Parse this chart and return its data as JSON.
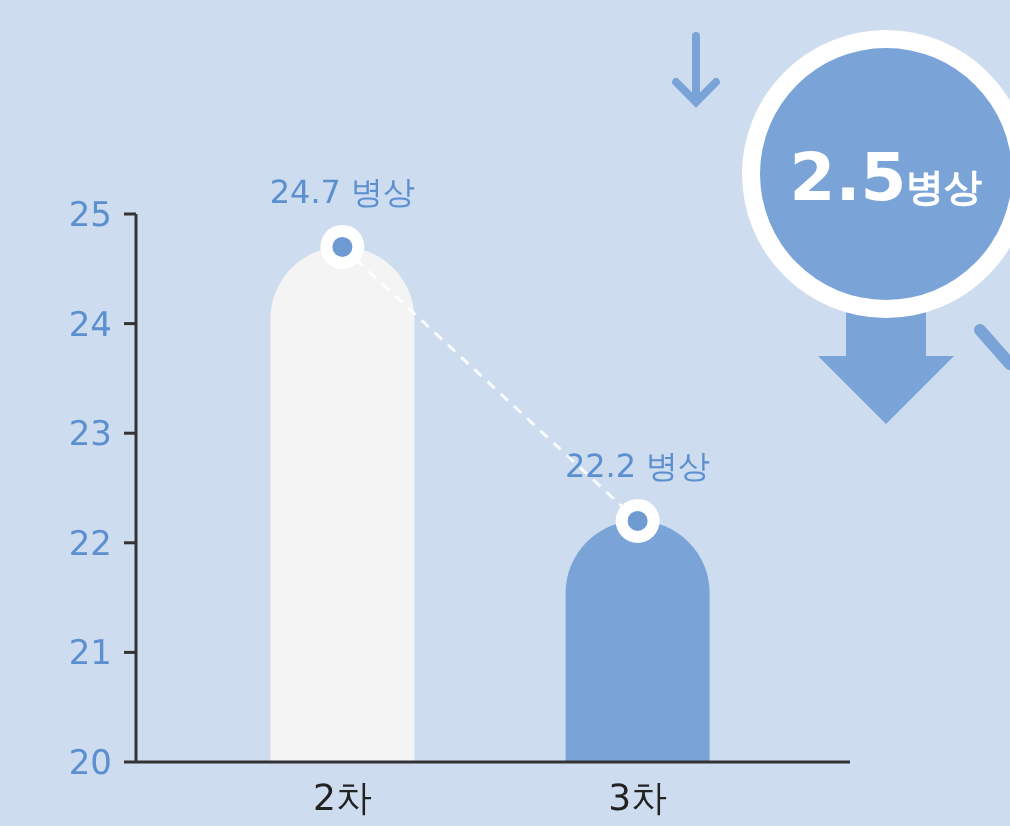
{
  "chart_data": {
    "type": "bar",
    "categories": [
      "2차",
      "3차"
    ],
    "series": [
      {
        "colors": [
          "#f4f4f4",
          "#7aa3d8"
        ],
        "values": [
          24.7,
          22.2
        ],
        "value_labels": [
          "24.7 병상",
          "22.2 병상"
        ]
      },
      {
        "type": "line",
        "color": "#ffffff",
        "values": [
          24.7,
          22.2
        ],
        "line_style": "dashed",
        "marker": "circle"
      }
    ],
    "ylim": [
      20,
      25
    ],
    "yticks": [
      20,
      21,
      22,
      23,
      24,
      25
    ],
    "grid": false,
    "annotations": [
      "2.5병상"
    ]
  }
}
